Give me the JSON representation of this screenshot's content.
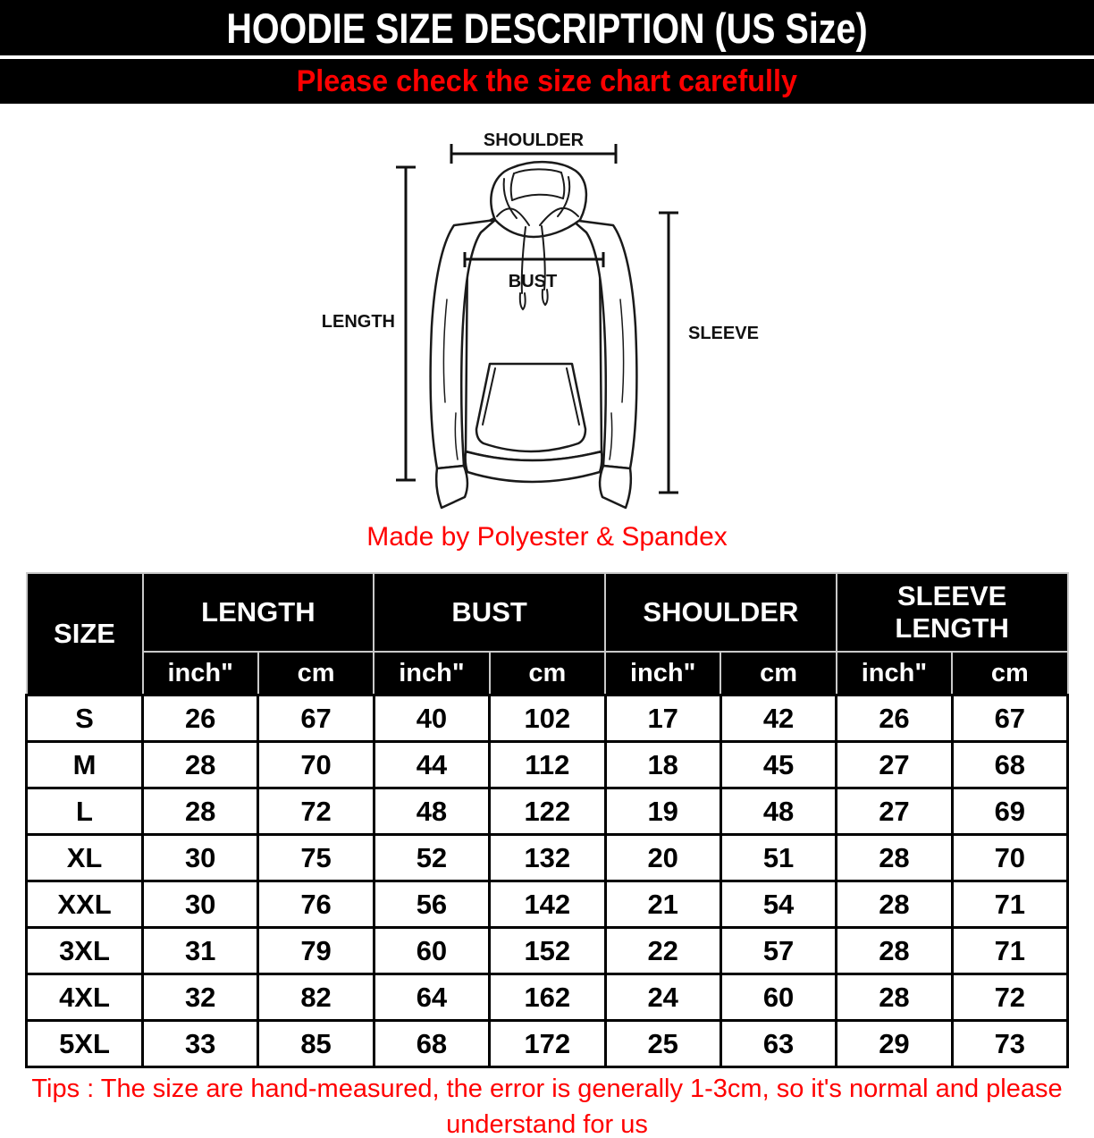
{
  "page": {
    "title": "HOODIE SIZE DESCRIPTION (US Size)",
    "subtitle": "Please check the size chart carefully"
  },
  "diagram": {
    "shoulder_label": "SHOULDER",
    "length_label": "LENGTH",
    "bust_label": "BUST",
    "sleeve_label": "SLEEVE",
    "material_note": "Made by Polyester & Spandex"
  },
  "table": {
    "corner": "SIZE",
    "groups": [
      "LENGTH",
      "BUST",
      "SHOULDER",
      "SLEEVE LENGTH"
    ],
    "unit_row": [
      "inch\"",
      "cm",
      "inch\"",
      "cm",
      "inch\"",
      "cm",
      "inch\"",
      "cm"
    ],
    "rows": [
      {
        "size": "S",
        "values": [
          "26",
          "67",
          "40",
          "102",
          "17",
          "42",
          "26",
          "67"
        ]
      },
      {
        "size": "M",
        "values": [
          "28",
          "70",
          "44",
          "112",
          "18",
          "45",
          "27",
          "68"
        ]
      },
      {
        "size": "L",
        "values": [
          "28",
          "72",
          "48",
          "122",
          "19",
          "48",
          "27",
          "69"
        ]
      },
      {
        "size": "XL",
        "values": [
          "30",
          "75",
          "52",
          "132",
          "20",
          "51",
          "28",
          "70"
        ]
      },
      {
        "size": "XXL",
        "values": [
          "30",
          "76",
          "56",
          "142",
          "21",
          "54",
          "28",
          "71"
        ]
      },
      {
        "size": "3XL",
        "values": [
          "31",
          "79",
          "60",
          "152",
          "22",
          "57",
          "28",
          "71"
        ]
      },
      {
        "size": "4XL",
        "values": [
          "32",
          "82",
          "64",
          "162",
          "24",
          "60",
          "28",
          "72"
        ]
      },
      {
        "size": "5XL",
        "values": [
          "33",
          "85",
          "68",
          "172",
          "25",
          "63",
          "29",
          "73"
        ]
      }
    ]
  },
  "tips": {
    "line1": "Tips : The size are hand-measured, the error is generally 1-3cm, so it's normal and please",
    "line2": "understand for us"
  },
  "colors": {
    "bar_background": "#000000",
    "header_text": "#ffffff",
    "accent_red": "#ff0000",
    "body_text": "#000000"
  }
}
